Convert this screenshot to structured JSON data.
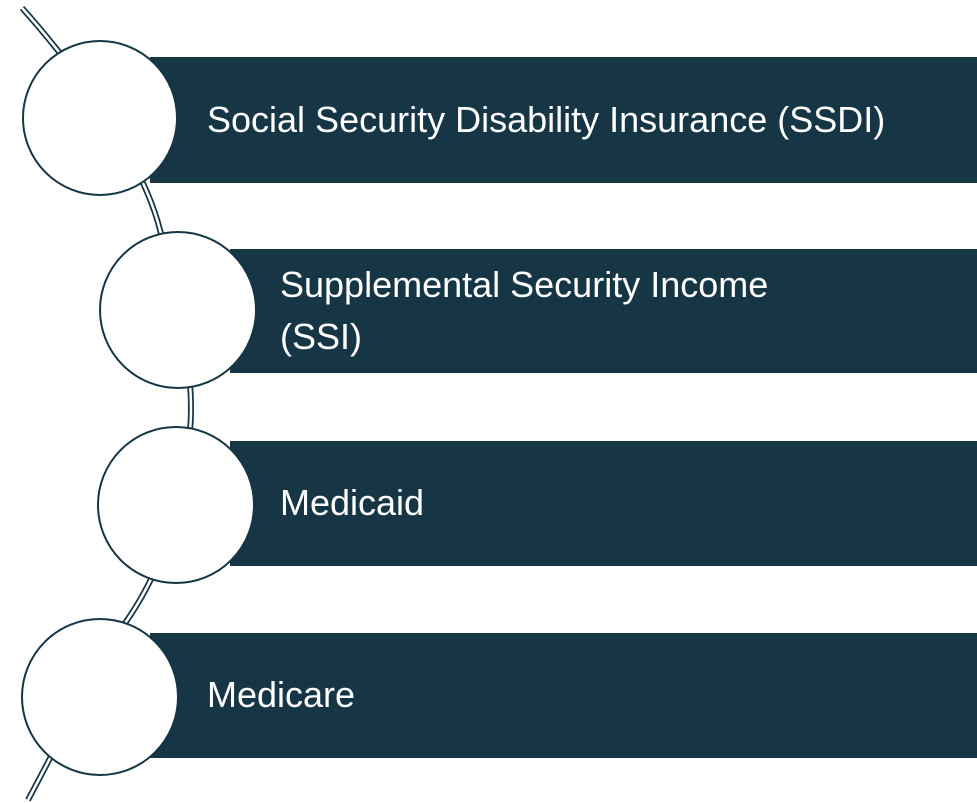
{
  "items": [
    {
      "label": "Social Security Disability Insurance (SSDI)"
    },
    {
      "label": "Supplemental Security Income (SSI)"
    },
    {
      "label": "Medicaid"
    },
    {
      "label": "Medicare"
    }
  ]
}
